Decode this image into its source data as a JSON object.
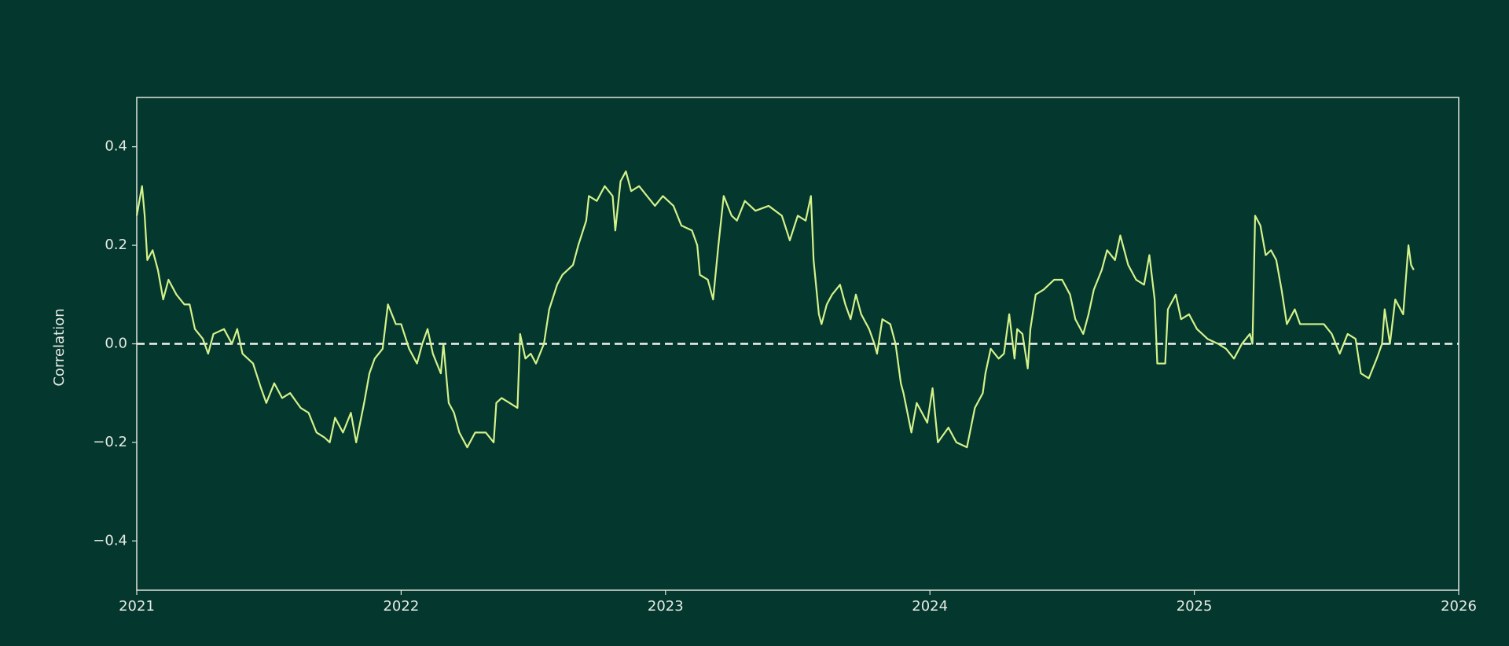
{
  "chart_data": {
    "type": "line",
    "ylabel": "Correlation",
    "x": [
      2021.0,
      2021.02,
      2021.03,
      2021.04,
      2021.06,
      2021.08,
      2021.1,
      2021.12,
      2021.15,
      2021.18,
      2021.2,
      2021.22,
      2021.25,
      2021.27,
      2021.29,
      2021.33,
      2021.36,
      2021.38,
      2021.4,
      2021.44,
      2021.47,
      2021.49,
      2021.52,
      2021.55,
      2021.58,
      2021.62,
      2021.65,
      2021.68,
      2021.71,
      2021.73,
      2021.75,
      2021.78,
      2021.81,
      2021.83,
      2021.86,
      2021.88,
      2021.9,
      2021.93,
      2021.95,
      2021.98,
      2022.0,
      2022.03,
      2022.06,
      2022.08,
      2022.1,
      2022.12,
      2022.15,
      2022.16,
      2022.18,
      2022.2,
      2022.22,
      2022.25,
      2022.28,
      2022.32,
      2022.35,
      2022.36,
      2022.38,
      2022.41,
      2022.44,
      2022.45,
      2022.47,
      2022.49,
      2022.51,
      2022.54,
      2022.56,
      2022.59,
      2022.61,
      2022.65,
      2022.67,
      2022.7,
      2022.71,
      2022.74,
      2022.77,
      2022.8,
      2022.81,
      2022.83,
      2022.85,
      2022.87,
      2022.9,
      2022.93,
      2022.96,
      2022.99,
      2023.03,
      2023.06,
      2023.1,
      2023.12,
      2023.13,
      2023.16,
      2023.18,
      2023.2,
      2023.22,
      2023.25,
      2023.27,
      2023.3,
      2023.34,
      2023.39,
      2023.44,
      2023.47,
      2023.5,
      2023.53,
      2023.55,
      2023.56,
      2023.58,
      2023.59,
      2023.61,
      2023.63,
      2023.66,
      2023.68,
      2023.7,
      2023.72,
      2023.74,
      2023.77,
      2023.79,
      2023.8,
      2023.82,
      2023.85,
      2023.87,
      2023.89,
      2023.9,
      2023.93,
      2023.95,
      2023.97,
      2023.99,
      2024.01,
      2024.03,
      2024.07,
      2024.1,
      2024.14,
      2024.17,
      2024.2,
      2024.21,
      2024.23,
      2024.26,
      2024.28,
      2024.3,
      2024.32,
      2024.33,
      2024.35,
      2024.37,
      2024.38,
      2024.4,
      2024.43,
      2024.47,
      2024.5,
      2024.53,
      2024.55,
      2024.58,
      2024.6,
      2024.62,
      2024.65,
      2024.67,
      2024.7,
      2024.72,
      2024.75,
      2024.78,
      2024.81,
      2024.83,
      2024.85,
      2024.86,
      2024.89,
      2024.9,
      2024.93,
      2024.95,
      2024.98,
      2025.01,
      2025.05,
      2025.09,
      2025.12,
      2025.15,
      2025.18,
      2025.21,
      2025.22,
      2025.23,
      2025.25,
      2025.27,
      2025.29,
      2025.31,
      2025.33,
      2025.35,
      2025.38,
      2025.4,
      2025.45,
      2025.49,
      2025.52,
      2025.55,
      2025.58,
      2025.61,
      2025.63,
      2025.66,
      2025.69,
      2025.71,
      2025.72,
      2025.74,
      2025.76,
      2025.79,
      2025.81,
      2025.82,
      2025.83
    ],
    "values": [
      0.26,
      0.32,
      0.26,
      0.17,
      0.19,
      0.15,
      0.09,
      0.13,
      0.1,
      0.08,
      0.08,
      0.03,
      0.01,
      -0.02,
      0.02,
      0.03,
      0.0,
      0.03,
      -0.02,
      -0.04,
      -0.09,
      -0.12,
      -0.08,
      -0.11,
      -0.1,
      -0.13,
      -0.14,
      -0.18,
      -0.19,
      -0.2,
      -0.15,
      -0.18,
      -0.14,
      -0.2,
      -0.12,
      -0.06,
      -0.03,
      -0.01,
      0.08,
      0.04,
      0.04,
      -0.01,
      -0.04,
      0.0,
      0.03,
      -0.02,
      -0.06,
      0.0,
      -0.12,
      -0.14,
      -0.18,
      -0.21,
      -0.18,
      -0.18,
      -0.2,
      -0.12,
      -0.11,
      -0.12,
      -0.13,
      0.02,
      -0.03,
      -0.02,
      -0.04,
      0.0,
      0.07,
      0.12,
      0.14,
      0.16,
      0.2,
      0.25,
      0.3,
      0.29,
      0.32,
      0.3,
      0.23,
      0.33,
      0.35,
      0.31,
      0.32,
      0.3,
      0.28,
      0.3,
      0.28,
      0.24,
      0.23,
      0.2,
      0.14,
      0.13,
      0.09,
      0.2,
      0.3,
      0.26,
      0.25,
      0.29,
      0.27,
      0.28,
      0.26,
      0.21,
      0.26,
      0.25,
      0.3,
      0.17,
      0.06,
      0.04,
      0.08,
      0.1,
      0.12,
      0.08,
      0.05,
      0.1,
      0.06,
      0.03,
      0.0,
      -0.02,
      0.05,
      0.04,
      0.0,
      -0.08,
      -0.1,
      -0.18,
      -0.12,
      -0.14,
      -0.16,
      -0.09,
      -0.2,
      -0.17,
      -0.2,
      -0.21,
      -0.13,
      -0.1,
      -0.06,
      -0.01,
      -0.03,
      -0.02,
      0.06,
      -0.03,
      0.03,
      0.02,
      -0.05,
      0.03,
      0.1,
      0.11,
      0.13,
      0.13,
      0.1,
      0.05,
      0.02,
      0.06,
      0.11,
      0.15,
      0.19,
      0.17,
      0.22,
      0.16,
      0.13,
      0.12,
      0.18,
      0.09,
      -0.04,
      -0.04,
      0.07,
      0.1,
      0.05,
      0.06,
      0.03,
      0.01,
      0.0,
      -0.01,
      -0.03,
      0.0,
      0.02,
      0.0,
      0.26,
      0.24,
      0.18,
      0.19,
      0.17,
      0.11,
      0.04,
      0.07,
      0.04,
      0.04,
      0.04,
      0.02,
      -0.02,
      0.02,
      0.01,
      -0.06,
      -0.07,
      -0.03,
      0.0,
      0.07,
      0.0,
      0.09,
      0.06,
      0.2,
      0.16,
      0.15
    ],
    "color": "#d4f28a",
    "hline": 0,
    "xlim": [
      2021,
      2026
    ],
    "xticks": [
      2021,
      2022,
      2023,
      2024,
      2025,
      2026
    ],
    "ylim": [
      -0.5,
      0.5
    ],
    "yticks": [
      {
        "value": -0.4,
        "label": "−0.4"
      },
      {
        "value": -0.2,
        "label": "−0.2"
      },
      {
        "value": 0,
        "label": "0.0"
      },
      0.2,
      0.4
    ]
  }
}
